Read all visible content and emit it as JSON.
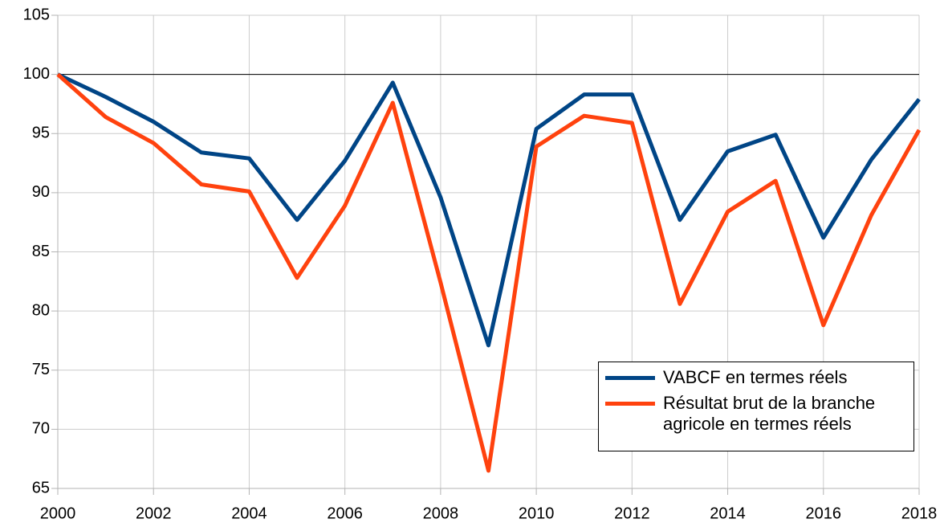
{
  "chart_data": {
    "type": "line",
    "x": [
      2000,
      2001,
      2002,
      2003,
      2004,
      2005,
      2006,
      2007,
      2008,
      2009,
      2010,
      2011,
      2012,
      2013,
      2014,
      2015,
      2016,
      2017,
      2018
    ],
    "series": [
      {
        "name": "VABCF en termes réels",
        "color": "#004586",
        "values": [
          100,
          98.1,
          96.0,
          93.4,
          92.9,
          87.7,
          92.7,
          99.3,
          89.6,
          77.1,
          95.4,
          98.3,
          98.3,
          87.7,
          93.5,
          94.9,
          86.2,
          92.8,
          97.9
        ]
      },
      {
        "name": "Résultat brut de la branche agricole en termes réels",
        "color": "#ff420e",
        "values": [
          100,
          96.4,
          94.2,
          90.7,
          90.1,
          82.8,
          88.9,
          97.6,
          82.4,
          66.5,
          93.9,
          96.5,
          95.9,
          80.6,
          88.4,
          91.0,
          78.8,
          88.1,
          95.3
        ]
      }
    ],
    "xlim": [
      2000,
      2018
    ],
    "xticks": [
      2000,
      2002,
      2004,
      2006,
      2008,
      2010,
      2012,
      2014,
      2016,
      2018
    ],
    "ylim": [
      65,
      105
    ],
    "yticks": [
      65,
      70,
      75,
      80,
      85,
      90,
      95,
      100,
      105
    ],
    "reference_line": 100,
    "grid": true,
    "legend": "lower right"
  }
}
